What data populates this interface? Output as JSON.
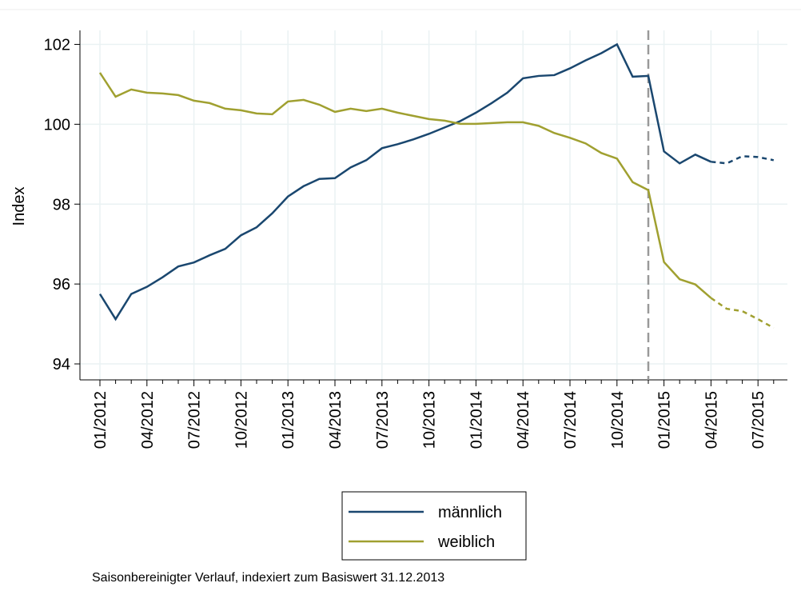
{
  "chart_data": {
    "type": "line",
    "y_label": "Index",
    "note": "Saisonbereinigter Verlauf, indexiert zum Basiswert 31.12.2013",
    "categories": [
      "01/2012",
      null,
      null,
      "04/2012",
      null,
      null,
      "07/2012",
      null,
      null,
      "10/2012",
      null,
      null,
      "01/2013",
      null,
      null,
      "04/2013",
      null,
      null,
      "07/2013",
      null,
      null,
      "10/2013",
      null,
      null,
      "01/2014",
      null,
      null,
      "04/2014",
      null,
      null,
      "07/2014",
      null,
      null,
      "10/2014",
      null,
      null,
      "01/2015",
      null,
      null,
      "04/2015",
      null,
      null,
      "07/2015",
      null
    ],
    "series": [
      {
        "name": "männlich",
        "color": "#1a476f",
        "values": [
          95.75,
          95.12,
          95.75,
          95.93,
          96.17,
          96.44,
          96.54,
          96.72,
          96.88,
          97.22,
          97.42,
          97.77,
          98.19,
          98.45,
          98.63,
          98.65,
          98.92,
          99.1,
          99.4,
          99.5,
          99.62,
          99.76,
          99.92,
          100.08,
          100.29,
          100.53,
          100.79,
          101.15,
          101.21,
          101.23,
          101.4,
          101.6,
          101.78,
          102.0,
          101.19,
          101.21,
          99.32,
          99.02,
          99.24,
          99.06,
          99.02,
          99.2,
          99.18,
          99.1
        ]
      },
      {
        "name": "weiblich",
        "color": "#a0a030",
        "values": [
          101.29,
          100.69,
          100.87,
          100.79,
          100.77,
          100.73,
          100.59,
          100.53,
          100.39,
          100.35,
          100.27,
          100.25,
          100.57,
          100.61,
          100.49,
          100.31,
          100.39,
          100.33,
          100.39,
          100.29,
          100.21,
          100.13,
          100.09,
          100.01,
          100.01,
          100.03,
          100.05,
          100.05,
          99.96,
          99.78,
          99.66,
          99.52,
          99.28,
          99.14,
          98.55,
          98.35,
          96.55,
          96.12,
          95.99,
          95.65,
          95.38,
          95.32,
          95.12,
          94.9
        ]
      }
    ],
    "dashed_from_index": 39,
    "reference_line": {
      "category_index": 35,
      "color": "#999999",
      "style": "dashed"
    },
    "ylim": [
      93.6,
      102.35
    ],
    "yticks": [
      94,
      96,
      98,
      100,
      102
    ],
    "grid": true,
    "legend": "bottom"
  }
}
